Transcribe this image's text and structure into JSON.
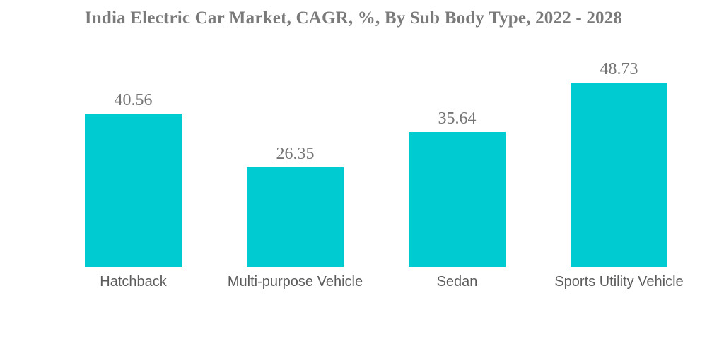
{
  "chart_data": {
    "type": "bar",
    "title": "India Electric Car Market, CAGR, %, By Sub Body Type, 2022 - 2028",
    "categories": [
      "Hatchback",
      "Multi-purpose Vehicle",
      "Sedan",
      "Sports Utility Vehicle"
    ],
    "values": [
      40.56,
      26.35,
      35.64,
      48.73
    ],
    "value_labels": [
      "40.56",
      "26.35",
      "35.64",
      "48.73"
    ],
    "xlabel": "",
    "ylabel": "",
    "ylim": [
      0,
      55
    ],
    "grid": false,
    "legend": false,
    "axes_visible": false,
    "colors": {
      "bar": "#00CBD1",
      "title_text": "#7a7a7a",
      "value_text": "#757575",
      "category_text": "#5c5c5c",
      "background": "#ffffff"
    }
  }
}
